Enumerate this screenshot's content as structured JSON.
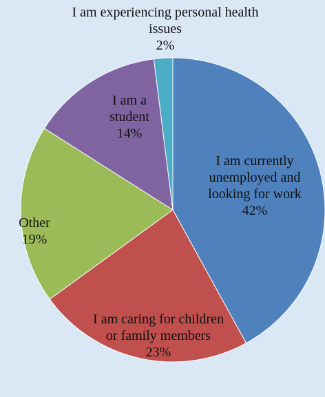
{
  "chart_data": {
    "type": "pie",
    "categories": [
      "I am currently unemployed and looking for work",
      "I am caring for children or family members",
      "Other",
      "I am a student",
      "I am experiencing personal health issues"
    ],
    "values": [
      42,
      23,
      19,
      14,
      2
    ],
    "value_labels": [
      "42%",
      "23%",
      "19%",
      "14%",
      "2%"
    ],
    "colors": [
      "#4f81bd",
      "#c0504d",
      "#9bbb59",
      "#8064a2",
      "#4bacc6"
    ]
  }
}
